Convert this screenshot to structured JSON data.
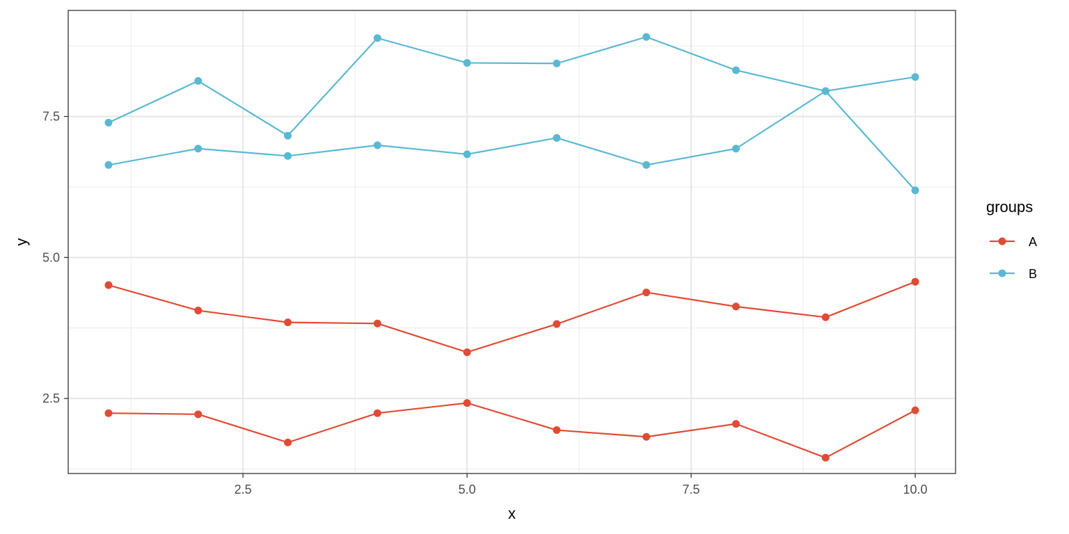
{
  "chart_data": {
    "type": "line",
    "title": "",
    "xlabel": "x",
    "ylabel": "y",
    "xlim": [
      0.55,
      10.45
    ],
    "ylim": [
      1.17,
      9.38
    ],
    "x_ticks": [
      2.5,
      5.0,
      7.5,
      10.0
    ],
    "x_tick_labels": [
      "2.5",
      "5.0",
      "7.5",
      "10.0"
    ],
    "y_ticks": [
      2.5,
      5.0,
      7.5
    ],
    "y_tick_labels": [
      "2.5",
      "5.0",
      "7.5"
    ],
    "grid": true,
    "legend": {
      "title": "groups",
      "position": "right",
      "entries": [
        "A",
        "B"
      ]
    },
    "colors": {
      "A": "#e04b35",
      "B": "#5bb8d3"
    },
    "x": [
      1,
      2,
      3,
      4,
      5,
      6,
      7,
      8,
      9,
      10
    ],
    "series": [
      {
        "group": "A",
        "values": [
          4.51,
          4.06,
          3.85,
          3.83,
          3.32,
          3.82,
          4.38,
          4.13,
          3.94,
          4.57
        ]
      },
      {
        "group": "A",
        "values": [
          2.24,
          2.22,
          1.72,
          2.24,
          2.42,
          1.94,
          1.82,
          2.05,
          1.45,
          2.29
        ]
      },
      {
        "group": "B",
        "values": [
          7.39,
          8.13,
          7.16,
          8.89,
          8.45,
          8.44,
          8.91,
          8.32,
          7.95,
          8.2
        ]
      },
      {
        "group": "B",
        "values": [
          6.64,
          6.93,
          6.8,
          6.99,
          6.83,
          7.12,
          6.64,
          6.93,
          7.95,
          6.19
        ]
      }
    ]
  }
}
